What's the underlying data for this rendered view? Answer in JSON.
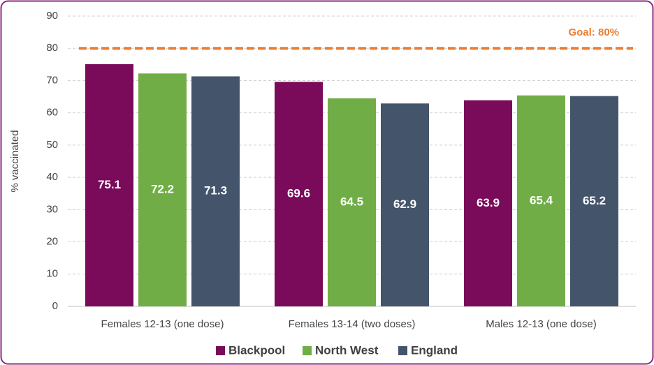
{
  "chart_data": {
    "type": "bar",
    "y_label": "% vaccinated",
    "categories": [
      "Females 12-13 (one dose)",
      "Females 13-14 (two doses)",
      "Males 12-13 (one dose)"
    ],
    "series": [
      {
        "name": "Blackpool",
        "color": "#7a0a5a",
        "values": [
          75.1,
          69.6,
          63.9
        ]
      },
      {
        "name": "North West",
        "color": "#70ad47",
        "values": [
          72.2,
          64.5,
          65.4
        ]
      },
      {
        "name": "England",
        "color": "#44546a",
        "values": [
          71.3,
          62.9,
          65.2
        ]
      }
    ],
    "ylim": [
      0,
      90
    ],
    "yticks": [
      0,
      10,
      20,
      30,
      40,
      50,
      60,
      70,
      80,
      90
    ],
    "grid": true,
    "goal": {
      "value": 80,
      "label": "Goal: 80%",
      "color": "#ed7d31"
    },
    "legend": "bottom"
  }
}
